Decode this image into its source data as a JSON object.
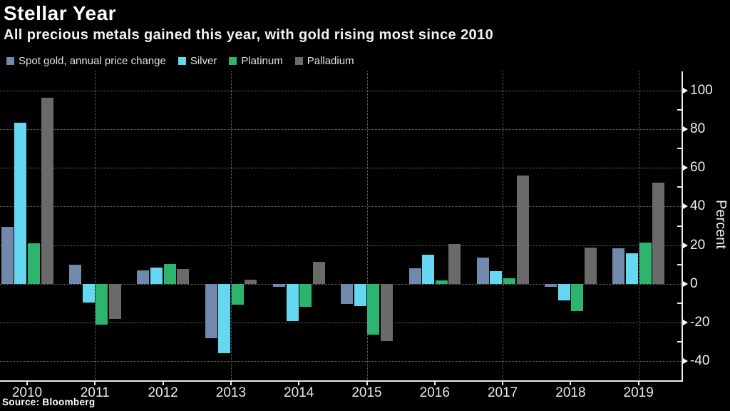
{
  "header": {
    "title": "Stellar Year",
    "subtitle": "All precious metals gained this year, with gold rising most since 2010"
  },
  "footer": {
    "source": "Source: Bloomberg"
  },
  "chart_data": {
    "type": "bar",
    "title": "Stellar Year",
    "subtitle": "All precious metals gained this year, with gold rising most since 2010",
    "categories": [
      "2010",
      "2011",
      "2012",
      "2013",
      "2014",
      "2015",
      "2016",
      "2017",
      "2018",
      "2019"
    ],
    "series": [
      {
        "name": "Spot gold, annual price change",
        "color": "#7189ac",
        "values": [
          29.5,
          9.7,
          7.0,
          -28.3,
          -1.5,
          -10.4,
          8.1,
          13.6,
          -1.6,
          18.3
        ]
      },
      {
        "name": "Silver",
        "color": "#66d7f0",
        "values": [
          83.5,
          -9.8,
          8.5,
          -35.8,
          -19.3,
          -11.7,
          15.1,
          6.4,
          -8.7,
          15.9
        ]
      },
      {
        "name": "Platinum",
        "color": "#2db46e",
        "values": [
          20.8,
          -21.2,
          10.2,
          -11.0,
          -12.0,
          -26.2,
          1.6,
          2.8,
          -14.2,
          21.3
        ]
      },
      {
        "name": "Palladium",
        "color": "#6a6a6a",
        "values": [
          96.5,
          -18.3,
          7.7,
          2.0,
          11.3,
          -29.5,
          20.7,
          56.2,
          18.7,
          52.5
        ]
      }
    ],
    "xlabel": "",
    "ylabel": "Percent",
    "ylim": [
      -50,
      110
    ],
    "yticks": [
      -40,
      -20,
      0,
      20,
      40,
      60,
      80,
      100
    ],
    "minor_yticks": [
      -30,
      -10,
      10,
      30,
      50,
      70,
      90
    ],
    "grid": "dotted",
    "vertical_gridlines_at": [
      "2011",
      "2013",
      "2015",
      "2017",
      "2019"
    ],
    "legend_position": "top-left",
    "background": "#000000"
  }
}
